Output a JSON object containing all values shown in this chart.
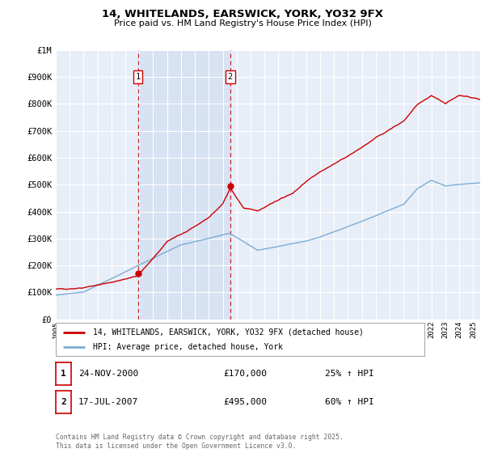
{
  "title": "14, WHITELANDS, EARSWICK, YORK, YO32 9FX",
  "subtitle": "Price paid vs. HM Land Registry's House Price Index (HPI)",
  "legend_label_red": "14, WHITELANDS, EARSWICK, YORK, YO32 9FX (detached house)",
  "legend_label_blue": "HPI: Average price, detached house, York",
  "transaction1_label": "1",
  "transaction1_date": "24-NOV-2000",
  "transaction1_price": "£170,000",
  "transaction1_hpi": "25% ↑ HPI",
  "transaction1_year": 2000.9,
  "transaction2_label": "2",
  "transaction2_date": "17-JUL-2007",
  "transaction2_price": "£495,000",
  "transaction2_hpi": "60% ↑ HPI",
  "transaction2_year": 2007.54,
  "copyright_text": "Contains HM Land Registry data © Crown copyright and database right 2025.\nThis data is licensed under the Open Government Licence v3.0.",
  "ylim": [
    0,
    1000000
  ],
  "xlim_start": 1995,
  "xlim_end": 2025.5,
  "background_color": "#ffffff",
  "plot_bg_color": "#e8eef8",
  "grid_color": "#ffffff",
  "red_color": "#cc0000",
  "blue_color": "#7aadd4",
  "vline_color": "#cc0000",
  "yticks": [
    0,
    100000,
    200000,
    300000,
    400000,
    500000,
    600000,
    700000,
    800000,
    900000,
    1000000
  ],
  "ytick_labels": [
    "£0",
    "£100K",
    "£200K",
    "£300K",
    "£400K",
    "£500K",
    "£600K",
    "£700K",
    "£800K",
    "£900K",
    "£1M"
  ]
}
